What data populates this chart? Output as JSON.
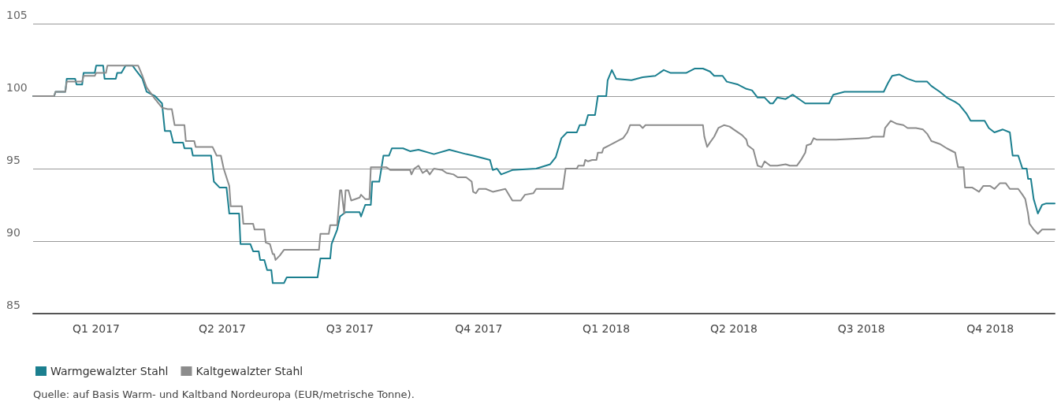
{
  "chart_data": {
    "type": "line",
    "xlim": [
      "2017-01-01",
      "2018-12-31"
    ],
    "xticks": [
      {
        "value": "2017-02-15",
        "label": "Q1 2017"
      },
      {
        "value": "2017-05-16",
        "label": "Q2 2017"
      },
      {
        "value": "2017-08-15",
        "label": "Q3 2017"
      },
      {
        "value": "2017-11-15",
        "label": "Q4 2017"
      },
      {
        "value": "2018-02-14",
        "label": "Q1 2018"
      },
      {
        "value": "2018-05-16",
        "label": "Q2 2018"
      },
      {
        "value": "2018-08-15",
        "label": "Q3 2018"
      },
      {
        "value": "2018-11-15",
        "label": "Q4 2018"
      }
    ],
    "ylim": [
      85,
      105
    ],
    "yticks": [
      85,
      90,
      95,
      100,
      105
    ],
    "grid": "y",
    "legend": "bottom left",
    "marker": "none",
    "line_style": "solid",
    "annotations": [
      "Quelle: auf Basis Warm- und Kaltband Nordeuropa (EUR/metrische Tonne)."
    ],
    "series": [
      {
        "name": "Warmgewalzter Stahl",
        "color": "#1b7f8f",
        "x": [
          "2017-01-01",
          "2017-01-16",
          "2017-01-17",
          "2017-01-24",
          "2017-01-25",
          "2017-01-31",
          "2017-02-01",
          "2017-02-05",
          "2017-02-06",
          "2017-02-14",
          "2017-02-15",
          "2017-02-20",
          "2017-02-21",
          "2017-03-01",
          "2017-03-02",
          "2017-03-05",
          "2017-03-08",
          "2017-03-13",
          "2017-03-16",
          "2017-03-20",
          "2017-03-23",
          "2017-03-29",
          "2017-04-03",
          "2017-04-05",
          "2017-04-09",
          "2017-04-11",
          "2017-04-18",
          "2017-04-19",
          "2017-04-24",
          "2017-04-25",
          "2017-05-08",
          "2017-05-10",
          "2017-05-14",
          "2017-05-19",
          "2017-05-21",
          "2017-05-28",
          "2017-05-29",
          "2017-06-05",
          "2017-06-07",
          "2017-06-11",
          "2017-06-12",
          "2017-06-15",
          "2017-06-17",
          "2017-06-20",
          "2017-06-21",
          "2017-06-29",
          "2017-07-01",
          "2017-07-23",
          "2017-07-25",
          "2017-08-01",
          "2017-08-02",
          "2017-08-06",
          "2017-08-08",
          "2017-08-12",
          "2017-08-22",
          "2017-08-23",
          "2017-08-26",
          "2017-08-30",
          "2017-08-31",
          "2017-09-05",
          "2017-09-08",
          "2017-09-12",
          "2017-09-14",
          "2017-09-22",
          "2017-09-27",
          "2017-10-03",
          "2017-10-14",
          "2017-10-25",
          "2017-11-06",
          "2017-11-11",
          "2017-11-23",
          "2017-11-25",
          "2017-11-28",
          "2017-12-01",
          "2017-12-09",
          "2017-12-26",
          "2018-01-05",
          "2018-01-09",
          "2018-01-13",
          "2018-01-17",
          "2018-01-24",
          "2018-01-26",
          "2018-01-30",
          "2018-02-01",
          "2018-02-06",
          "2018-02-08",
          "2018-02-14",
          "2018-02-15",
          "2018-02-18",
          "2018-02-21",
          "2018-03-04",
          "2018-03-12",
          "2018-03-21",
          "2018-03-27",
          "2018-04-01",
          "2018-04-12",
          "2018-04-18",
          "2018-04-24",
          "2018-04-29",
          "2018-05-02",
          "2018-05-08",
          "2018-05-11",
          "2018-05-19",
          "2018-05-25",
          "2018-05-29",
          "2018-06-02",
          "2018-06-07",
          "2018-06-11",
          "2018-06-13",
          "2018-06-16",
          "2018-06-22",
          "2018-06-27",
          "2018-07-03",
          "2018-07-06",
          "2018-07-23",
          "2018-07-26",
          "2018-08-03",
          "2018-08-31",
          "2018-09-03",
          "2018-09-06",
          "2018-09-11",
          "2018-09-17",
          "2018-09-23",
          "2018-10-01",
          "2018-10-04",
          "2018-10-10",
          "2018-10-15",
          "2018-10-21",
          "2018-10-24",
          "2018-10-29",
          "2018-11-01",
          "2018-11-11",
          "2018-11-14",
          "2018-11-18",
          "2018-11-24",
          "2018-11-29",
          "2018-12-01",
          "2018-12-05",
          "2018-12-08",
          "2018-12-11",
          "2018-12-12",
          "2018-12-14",
          "2018-12-16",
          "2018-12-19",
          "2018-12-22",
          "2018-12-25",
          "2018-12-31"
        ],
        "values": [
          100.0,
          100.0,
          100.3,
          100.3,
          101.2,
          101.2,
          100.8,
          100.8,
          101.6,
          101.6,
          102.1,
          102.1,
          101.2,
          101.2,
          101.6,
          101.6,
          102.1,
          102.1,
          101.7,
          101.2,
          100.3,
          100.0,
          99.5,
          97.6,
          97.6,
          96.8,
          96.8,
          96.4,
          96.4,
          95.9,
          95.9,
          94.1,
          93.7,
          93.7,
          91.9,
          91.9,
          89.8,
          89.8,
          89.3,
          89.3,
          88.7,
          88.7,
          88.0,
          88.0,
          87.1,
          87.1,
          87.5,
          87.5,
          88.8,
          88.8,
          89.8,
          90.8,
          91.7,
          92.0,
          92.0,
          91.7,
          92.5,
          92.5,
          94.1,
          94.1,
          95.9,
          95.9,
          96.4,
          96.4,
          96.2,
          96.3,
          96.0,
          96.3,
          96.0,
          95.9,
          95.6,
          94.9,
          95.0,
          94.6,
          94.9,
          95.0,
          95.3,
          95.8,
          97.1,
          97.5,
          97.5,
          98.0,
          98.0,
          98.7,
          98.7,
          100.0,
          100.0,
          101.1,
          101.8,
          101.2,
          101.1,
          101.3,
          101.4,
          101.8,
          101.6,
          101.6,
          101.9,
          101.9,
          101.7,
          101.4,
          101.4,
          101.0,
          100.8,
          100.5,
          100.4,
          99.9,
          99.9,
          99.5,
          99.5,
          99.9,
          99.8,
          100.1,
          99.7,
          99.5,
          99.5,
          100.1,
          100.3,
          100.3,
          100.9,
          101.4,
          101.5,
          101.2,
          101.0,
          101.0,
          100.7,
          100.3,
          99.9,
          99.6,
          99.4,
          98.8,
          98.3,
          98.3,
          97.8,
          97.5,
          97.7,
          97.5,
          95.9,
          95.9,
          95.0,
          95.0,
          94.3,
          94.3,
          92.9,
          91.9,
          92.5,
          92.6,
          92.6
        ]
      },
      {
        "name": "Kaltgewalzter Stahl",
        "color": "#8c8c8c",
        "x": [
          "2017-01-01",
          "2017-01-16",
          "2017-01-17",
          "2017-01-24",
          "2017-01-25",
          "2017-02-05",
          "2017-02-06",
          "2017-02-14",
          "2017-02-15",
          "2017-02-22",
          "2017-02-23",
          "2017-03-17",
          "2017-03-20",
          "2017-03-23",
          "2017-03-29",
          "2017-04-03",
          "2017-04-07",
          "2017-04-10",
          "2017-04-12",
          "2017-04-19",
          "2017-04-20",
          "2017-04-26",
          "2017-04-27",
          "2017-05-09",
          "2017-05-12",
          "2017-05-15",
          "2017-05-17",
          "2017-05-21",
          "2017-05-22",
          "2017-05-30",
          "2017-05-31",
          "2017-06-07",
          "2017-06-08",
          "2017-06-15",
          "2017-06-16",
          "2017-06-19",
          "2017-06-21",
          "2017-06-22",
          "2017-06-23",
          "2017-06-26",
          "2017-06-29",
          "2017-07-24",
          "2017-07-25",
          "2017-07-31",
          "2017-08-01",
          "2017-08-06",
          "2017-08-08",
          "2017-08-09",
          "2017-08-11",
          "2017-08-12",
          "2017-08-14",
          "2017-08-16",
          "2017-08-22",
          "2017-08-23",
          "2017-08-26",
          "2017-08-29",
          "2017-08-30",
          "2017-09-10",
          "2017-09-13",
          "2017-09-27",
          "2017-09-28",
          "2017-09-30",
          "2017-10-03",
          "2017-10-06",
          "2017-10-09",
          "2017-10-11",
          "2017-10-14",
          "2017-10-20",
          "2017-10-23",
          "2017-10-28",
          "2017-10-31",
          "2017-11-06",
          "2017-11-10",
          "2017-11-11",
          "2017-11-13",
          "2017-11-15",
          "2017-11-20",
          "2017-11-25",
          "2017-12-04",
          "2017-12-09",
          "2017-12-15",
          "2017-12-18",
          "2017-12-24",
          "2017-12-26",
          "2018-01-14",
          "2018-01-16",
          "2018-01-24",
          "2018-01-25",
          "2018-01-29",
          "2018-01-30",
          "2018-02-01",
          "2018-02-04",
          "2018-02-07",
          "2018-02-08",
          "2018-02-11",
          "2018-02-12",
          "2018-02-16",
          "2018-02-20",
          "2018-02-24",
          "2018-02-26",
          "2018-03-01",
          "2018-03-03",
          "2018-03-10",
          "2018-03-12",
          "2018-03-14",
          "2018-04-24",
          "2018-04-25",
          "2018-04-27",
          "2018-04-29",
          "2018-05-02",
          "2018-05-05",
          "2018-05-09",
          "2018-05-13",
          "2018-05-16",
          "2018-05-22",
          "2018-05-25",
          "2018-05-26",
          "2018-05-30",
          "2018-06-02",
          "2018-06-05",
          "2018-06-07",
          "2018-06-11",
          "2018-06-16",
          "2018-06-22",
          "2018-06-25",
          "2018-06-30",
          "2018-07-03",
          "2018-07-06",
          "2018-07-07",
          "2018-07-10",
          "2018-07-12",
          "2018-07-14",
          "2018-07-20",
          "2018-07-28",
          "2018-08-20",
          "2018-08-23",
          "2018-08-31",
          "2018-09-01",
          "2018-09-05",
          "2018-09-09",
          "2018-09-14",
          "2018-09-17",
          "2018-09-23",
          "2018-09-28",
          "2018-10-01",
          "2018-10-04",
          "2018-10-10",
          "2018-10-15",
          "2018-10-21",
          "2018-10-23",
          "2018-10-27",
          "2018-10-28",
          "2018-11-02",
          "2018-11-07",
          "2018-11-10",
          "2018-11-15",
          "2018-11-18",
          "2018-11-22",
          "2018-11-26",
          "2018-11-29",
          "2018-12-05",
          "2018-12-08",
          "2018-12-10",
          "2018-12-12",
          "2018-12-13",
          "2018-12-16",
          "2018-12-19",
          "2018-12-22",
          "2018-12-31"
        ],
        "values": [
          100.0,
          100.0,
          100.3,
          100.3,
          101.0,
          101.0,
          101.4,
          101.4,
          101.6,
          101.6,
          102.1,
          102.1,
          101.4,
          100.6,
          99.8,
          99.2,
          99.1,
          99.1,
          98.0,
          98.0,
          96.9,
          96.9,
          96.5,
          96.5,
          95.9,
          95.9,
          95.0,
          93.8,
          92.4,
          92.4,
          91.2,
          91.2,
          90.8,
          90.8,
          89.9,
          89.8,
          89.1,
          89.1,
          88.7,
          89.0,
          89.4,
          89.4,
          90.5,
          90.5,
          91.1,
          91.1,
          93.5,
          93.5,
          91.9,
          93.5,
          93.5,
          92.8,
          93.0,
          93.2,
          92.9,
          92.9,
          95.1,
          95.1,
          94.9,
          94.9,
          94.6,
          95.0,
          95.2,
          94.7,
          94.9,
          94.6,
          95.0,
          94.9,
          94.7,
          94.6,
          94.4,
          94.4,
          94.1,
          93.4,
          93.3,
          93.6,
          93.6,
          93.4,
          93.6,
          92.8,
          92.8,
          93.2,
          93.3,
          93.6,
          93.6,
          95.0,
          95.0,
          95.2,
          95.2,
          95.6,
          95.5,
          95.6,
          95.6,
          96.1,
          96.1,
          96.4,
          96.6,
          96.8,
          97.0,
          97.1,
          97.5,
          98.0,
          98.0,
          97.8,
          98.0,
          98.0,
          97.2,
          96.5,
          96.8,
          97.2,
          97.8,
          98.0,
          97.9,
          97.7,
          97.3,
          97.0,
          96.6,
          96.3,
          95.2,
          95.1,
          95.5,
          95.2,
          95.2,
          95.3,
          95.2,
          95.2,
          95.6,
          96.1,
          96.6,
          96.7,
          97.1,
          97.0,
          97.0,
          97.0,
          97.1,
          97.2,
          97.2,
          97.8,
          98.3,
          98.1,
          98.0,
          97.8,
          97.8,
          97.7,
          97.4,
          96.9,
          96.7,
          96.4,
          96.1,
          95.1,
          95.1,
          93.7,
          93.7,
          93.4,
          93.8,
          93.8,
          93.6,
          94.0,
          94.0,
          93.6,
          93.6,
          93.2,
          92.9,
          91.9,
          91.2,
          90.8,
          90.5,
          90.8,
          90.8
        ]
      }
    ]
  }
}
